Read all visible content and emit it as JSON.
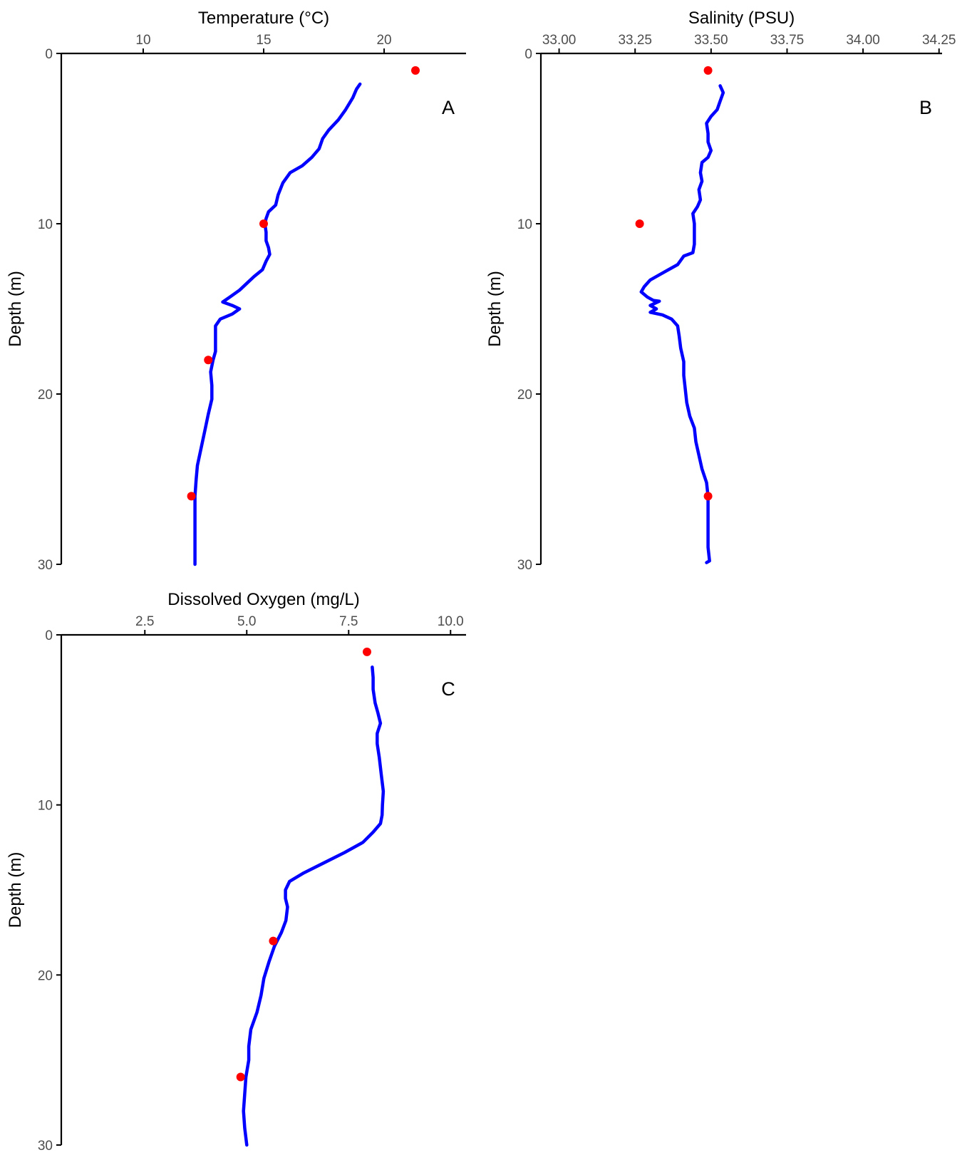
{
  "chart_data": [
    {
      "type": "line",
      "panel_label": "A",
      "xlabel": "Temperature (°C)",
      "ylabel": "Depth (m)",
      "x_axis_position": "top",
      "y_reversed": true,
      "xlim": [
        6.6,
        23.4
      ],
      "ylim": [
        0,
        30
      ],
      "xticks": [
        10,
        15,
        20
      ],
      "xtick_labels": [
        "10",
        "15",
        "20"
      ],
      "yticks": [
        0,
        10,
        20,
        30
      ],
      "ytick_labels": [
        "0",
        "10",
        "20",
        "30"
      ],
      "grid": false,
      "profile_color": "#0000ff",
      "sample_color": "#ff0000",
      "series": [
        {
          "kind": "profile",
          "points": [
            [
              19.0,
              1.8
            ],
            [
              18.85,
              2.1
            ],
            [
              18.7,
              2.6
            ],
            [
              18.4,
              3.3
            ],
            [
              18.1,
              3.9
            ],
            [
              17.7,
              4.5
            ],
            [
              17.45,
              5.0
            ],
            [
              17.3,
              5.6
            ],
            [
              17.0,
              6.1
            ],
            [
              16.6,
              6.6
            ],
            [
              16.1,
              7.0
            ],
            [
              15.8,
              7.6
            ],
            [
              15.6,
              8.3
            ],
            [
              15.5,
              8.9
            ],
            [
              15.2,
              9.3
            ],
            [
              15.1,
              9.7
            ],
            [
              15.05,
              10.0
            ],
            [
              15.1,
              10.5
            ],
            [
              15.1,
              11.0
            ],
            [
              15.2,
              11.4
            ],
            [
              15.25,
              11.8
            ],
            [
              15.1,
              12.2
            ],
            [
              14.95,
              12.7
            ],
            [
              14.6,
              13.1
            ],
            [
              14.3,
              13.5
            ],
            [
              14.0,
              13.9
            ],
            [
              13.6,
              14.3
            ],
            [
              13.3,
              14.6
            ],
            [
              13.7,
              14.8
            ],
            [
              14.0,
              15.0
            ],
            [
              13.7,
              15.3
            ],
            [
              13.2,
              15.6
            ],
            [
              13.0,
              16.0
            ],
            [
              13.0,
              16.8
            ],
            [
              13.0,
              17.5
            ],
            [
              12.9,
              18.0
            ],
            [
              12.8,
              18.7
            ],
            [
              12.85,
              19.5
            ],
            [
              12.85,
              20.3
            ],
            [
              12.7,
              21.2
            ],
            [
              12.55,
              22.2
            ],
            [
              12.4,
              23.2
            ],
            [
              12.25,
              24.2
            ],
            [
              12.2,
              25.0
            ],
            [
              12.15,
              26.0
            ],
            [
              12.15,
              27.0
            ],
            [
              12.15,
              28.0
            ],
            [
              12.15,
              29.0
            ],
            [
              12.15,
              30.0
            ]
          ]
        },
        {
          "kind": "samples",
          "points": [
            [
              21.3,
              1.0
            ],
            [
              15.0,
              10.0
            ],
            [
              12.7,
              18.0
            ],
            [
              12.0,
              26.0
            ]
          ]
        }
      ]
    },
    {
      "type": "line",
      "panel_label": "B",
      "xlabel": "Salinity (PSU)",
      "ylabel": "Depth (m)",
      "x_axis_position": "top",
      "y_reversed": true,
      "xlim": [
        32.94,
        34.26
      ],
      "ylim": [
        0,
        30
      ],
      "xticks": [
        33.0,
        33.25,
        33.5,
        33.75,
        34.0,
        34.25
      ],
      "xtick_labels": [
        "33.00",
        "33.25",
        "33.50",
        "33.75",
        "34.00",
        "34.25"
      ],
      "yticks": [
        0,
        10,
        20,
        30
      ],
      "ytick_labels": [
        "0",
        "10",
        "20",
        "30"
      ],
      "grid": false,
      "profile_color": "#0000ff",
      "sample_color": "#ff0000",
      "series": [
        {
          "kind": "profile",
          "points": [
            [
              33.53,
              1.9
            ],
            [
              33.54,
              2.3
            ],
            [
              33.53,
              2.8
            ],
            [
              33.52,
              3.3
            ],
            [
              33.5,
              3.7
            ],
            [
              33.485,
              4.1
            ],
            [
              33.49,
              4.7
            ],
            [
              33.49,
              5.2
            ],
            [
              33.5,
              5.7
            ],
            [
              33.49,
              6.1
            ],
            [
              33.47,
              6.4
            ],
            [
              33.465,
              7.0
            ],
            [
              33.47,
              7.5
            ],
            [
              33.46,
              8.0
            ],
            [
              33.465,
              8.6
            ],
            [
              33.455,
              9.0
            ],
            [
              33.44,
              9.4
            ],
            [
              33.445,
              10.0
            ],
            [
              33.445,
              10.6
            ],
            [
              33.445,
              11.2
            ],
            [
              33.44,
              11.7
            ],
            [
              33.41,
              11.9
            ],
            [
              33.39,
              12.4
            ],
            [
              33.36,
              12.7
            ],
            [
              33.33,
              13.0
            ],
            [
              33.3,
              13.3
            ],
            [
              33.28,
              13.7
            ],
            [
              33.27,
              14.0
            ],
            [
              33.29,
              14.3
            ],
            [
              33.31,
              14.5
            ],
            [
              33.33,
              14.55
            ],
            [
              33.3,
              14.8
            ],
            [
              33.32,
              15.0
            ],
            [
              33.3,
              15.2
            ],
            [
              33.34,
              15.35
            ],
            [
              33.37,
              15.6
            ],
            [
              33.39,
              16.0
            ],
            [
              33.395,
              16.6
            ],
            [
              33.4,
              17.3
            ],
            [
              33.41,
              18.1
            ],
            [
              33.41,
              18.9
            ],
            [
              33.415,
              19.7
            ],
            [
              33.42,
              20.5
            ],
            [
              33.43,
              21.3
            ],
            [
              33.445,
              22.0
            ],
            [
              33.45,
              22.8
            ],
            [
              33.46,
              23.6
            ],
            [
              33.47,
              24.4
            ],
            [
              33.485,
              25.2
            ],
            [
              33.49,
              26.0
            ],
            [
              33.49,
              27.0
            ],
            [
              33.49,
              28.0
            ],
            [
              33.49,
              29.0
            ],
            [
              33.495,
              29.8
            ],
            [
              33.485,
              29.9
            ]
          ]
        },
        {
          "kind": "samples",
          "points": [
            [
              33.49,
              1.0
            ],
            [
              33.265,
              10.0
            ],
            [
              33.49,
              26.0
            ]
          ]
        }
      ]
    },
    {
      "type": "line",
      "panel_label": "C",
      "xlabel": "Dissolved Oxygen (mg/L)",
      "ylabel": "Depth (m)",
      "x_axis_position": "top",
      "y_reversed": true,
      "xlim": [
        0.45,
        10.38
      ],
      "ylim": [
        0,
        30
      ],
      "xticks": [
        2.5,
        5.0,
        7.5,
        10.0
      ],
      "xtick_labels": [
        "2.5",
        "5.0",
        "7.5",
        "10.0"
      ],
      "yticks": [
        0,
        10,
        20,
        30
      ],
      "ytick_labels": [
        "0",
        "10",
        "20",
        "30"
      ],
      "grid": false,
      "profile_color": "#0000ff",
      "sample_color": "#ff0000",
      "series": [
        {
          "kind": "profile",
          "points": [
            [
              8.08,
              1.9
            ],
            [
              8.1,
              2.5
            ],
            [
              8.1,
              3.2
            ],
            [
              8.15,
              4.0
            ],
            [
              8.22,
              4.6
            ],
            [
              8.28,
              5.2
            ],
            [
              8.2,
              5.8
            ],
            [
              8.2,
              6.4
            ],
            [
              8.25,
              7.2
            ],
            [
              8.3,
              8.2
            ],
            [
              8.35,
              9.2
            ],
            [
              8.33,
              10.0
            ],
            [
              8.32,
              10.6
            ],
            [
              8.28,
              11.1
            ],
            [
              8.1,
              11.6
            ],
            [
              7.85,
              12.2
            ],
            [
              7.4,
              12.8
            ],
            [
              6.9,
              13.4
            ],
            [
              6.4,
              14.0
            ],
            [
              6.05,
              14.5
            ],
            [
              5.95,
              15.0
            ],
            [
              5.95,
              15.5
            ],
            [
              6.0,
              16.0
            ],
            [
              5.96,
              16.8
            ],
            [
              5.85,
              17.5
            ],
            [
              5.68,
              18.3
            ],
            [
              5.55,
              19.2
            ],
            [
              5.42,
              20.2
            ],
            [
              5.35,
              21.2
            ],
            [
              5.25,
              22.2
            ],
            [
              5.1,
              23.2
            ],
            [
              5.05,
              24.2
            ],
            [
              5.05,
              25.0
            ],
            [
              4.98,
              26.0
            ],
            [
              4.95,
              27.0
            ],
            [
              4.92,
              28.0
            ],
            [
              4.95,
              29.0
            ],
            [
              5.0,
              30.0
            ]
          ]
        },
        {
          "kind": "samples",
          "points": [
            [
              7.95,
              1.0
            ],
            [
              5.65,
              18.0
            ],
            [
              4.85,
              26.0
            ]
          ]
        }
      ]
    }
  ]
}
